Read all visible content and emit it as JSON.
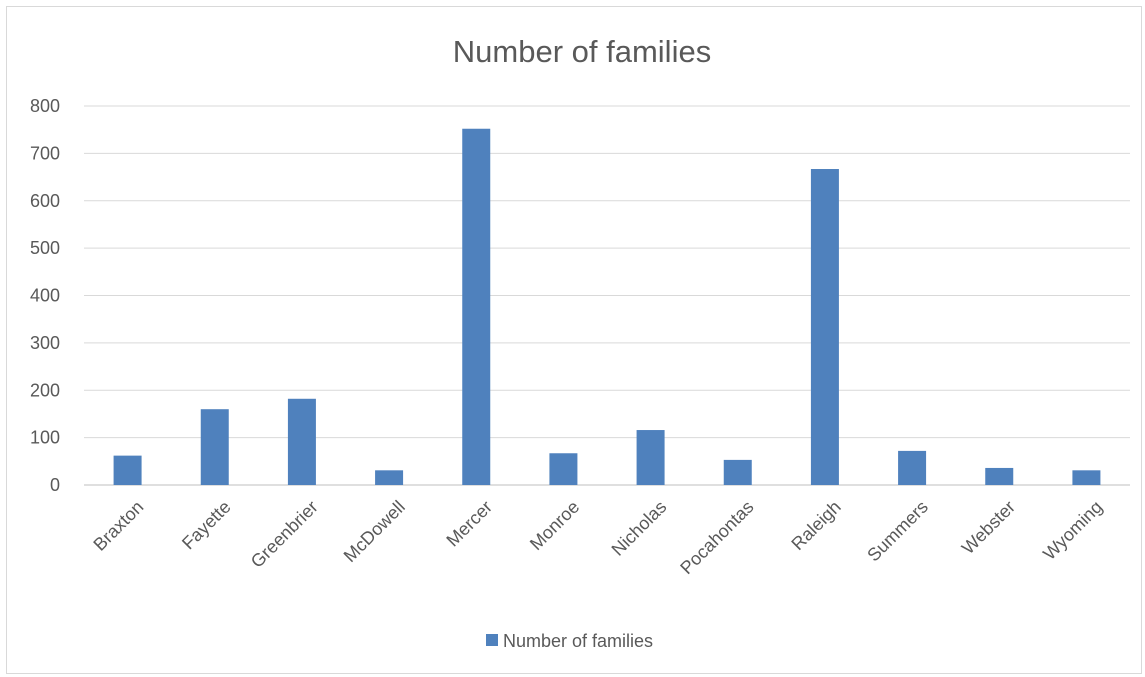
{
  "chart_data": {
    "type": "bar",
    "title": "Number of families",
    "xlabel": "",
    "ylabel": "",
    "categories": [
      "Braxton",
      "Fayette",
      "Greenbrier",
      "McDowell",
      "Mercer",
      "Monroe",
      "Nicholas",
      "Pocahontas",
      "Raleigh",
      "Summers",
      "Webster",
      "Wyoming"
    ],
    "series": [
      {
        "name": "Number of families",
        "values": [
          62,
          160,
          182,
          31,
          752,
          67,
          116,
          53,
          667,
          72,
          36,
          31
        ],
        "color": "#4f81bd"
      }
    ],
    "ylim": [
      0,
      800
    ],
    "yticks": [
      0,
      100,
      200,
      300,
      400,
      500,
      600,
      700,
      800
    ],
    "grid": true,
    "legend": "bottom"
  }
}
